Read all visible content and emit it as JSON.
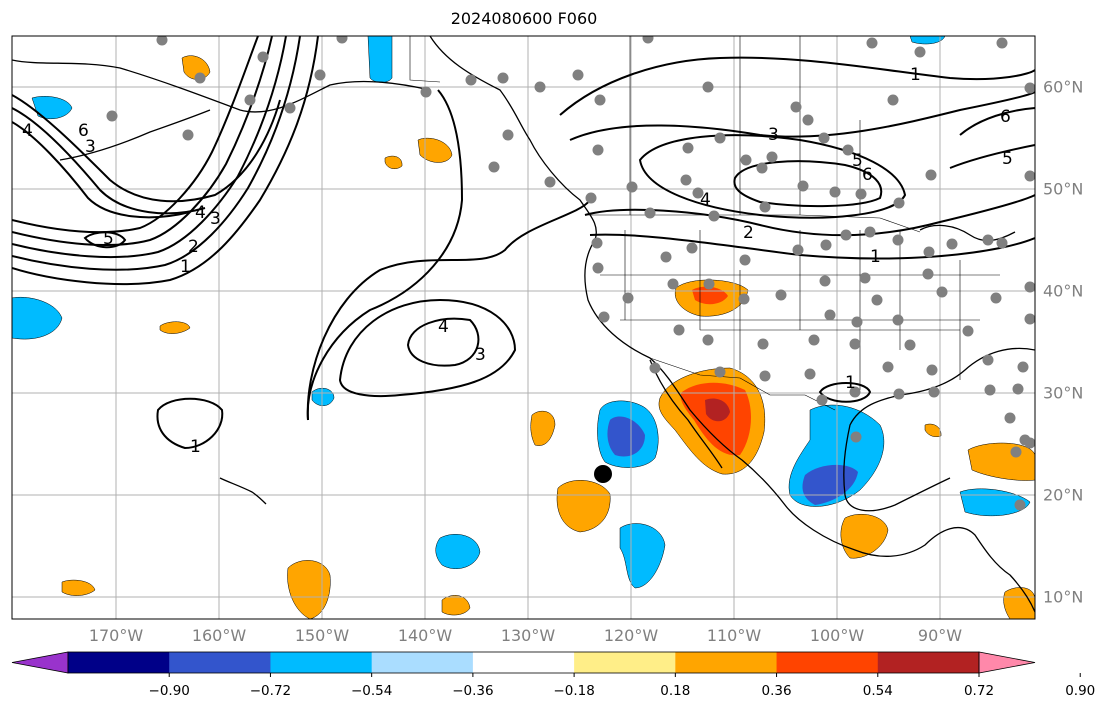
{
  "title": "2024080600 F060",
  "axes": {
    "lon_labels": [
      "170°W",
      "160°W",
      "150°W",
      "140°W",
      "130°W",
      "120°W",
      "110°W",
      "100°W",
      "90°W"
    ],
    "lat_labels": [
      "10°N",
      "20°N",
      "30°N",
      "40°N",
      "50°N",
      "60°N"
    ]
  },
  "colorbar": {
    "tick_labels": [
      "−0.90",
      "−0.72",
      "−0.54",
      "−0.36",
      "−0.18",
      "0.18",
      "0.36",
      "0.54",
      "0.72",
      "0.90"
    ],
    "colors": [
      "#9933cc",
      "#000088",
      "#3355cc",
      "#00bbff",
      "#aaddff",
      "#ffffff",
      "#ffee88",
      "#ffa500",
      "#ff4400",
      "#b22222",
      "#ff88aa"
    ]
  },
  "contour_labels": [
    "1",
    "2",
    "3",
    "4",
    "5",
    "6"
  ],
  "colors": {
    "land": "#000000",
    "grid": "#b0b0b0",
    "station": "#808080",
    "marker": "#000000"
  }
}
